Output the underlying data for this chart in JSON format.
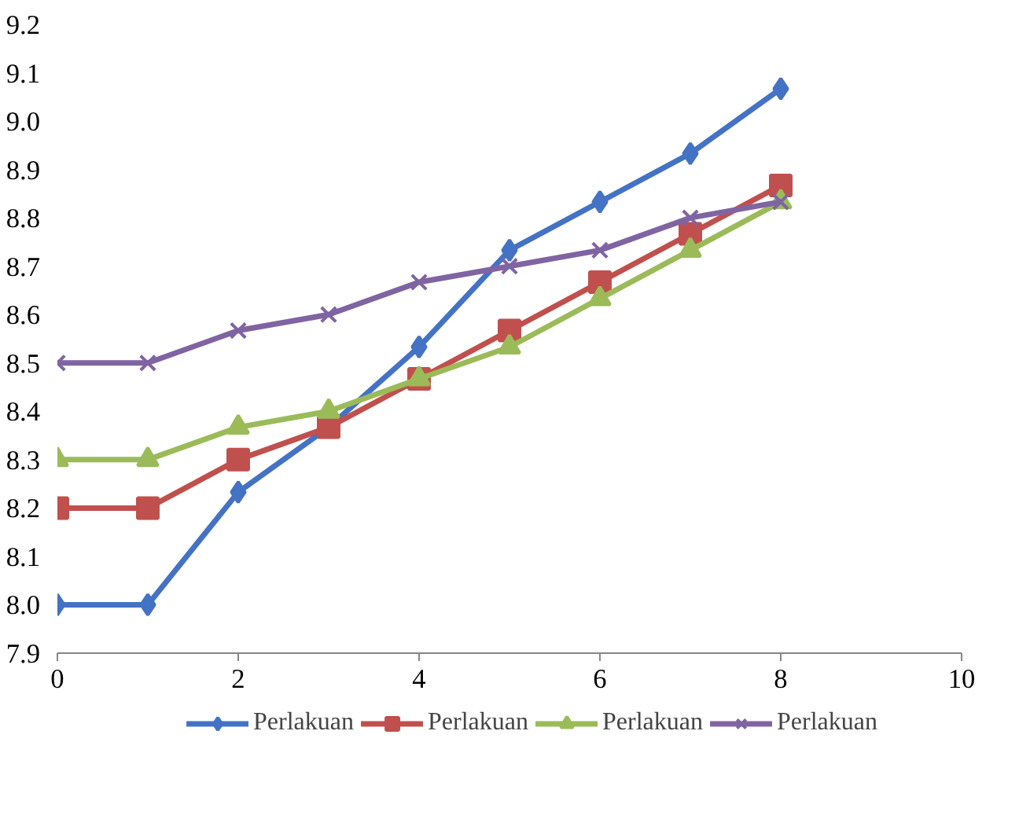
{
  "chart_data": {
    "type": "line",
    "x": [
      0,
      1,
      2,
      3,
      4,
      5,
      6,
      7,
      8
    ],
    "xlim": [
      0,
      10
    ],
    "xticks": [
      0,
      2,
      4,
      6,
      8,
      10
    ],
    "ylim": [
      7.9,
      9.2
    ],
    "yticks": [
      7.9,
      {
        "value": 8,
        "label": "8.0"
      },
      8.1,
      8.2,
      8.3,
      8.4,
      8.5,
      8.6,
      8.7,
      8.8,
      8.9,
      {
        "value": 9,
        "label": "9.0"
      },
      9.1,
      9.2
    ],
    "grid": false,
    "legend": "bottom",
    "line_style": "solid",
    "series": [
      {
        "name": "Perlakuan",
        "color": "#4472c4",
        "marker": "diamond",
        "values": [
          8.0,
          8.0,
          8.233,
          8.367,
          8.533,
          8.733,
          8.833,
          8.933,
          9.067
        ]
      },
      {
        "name": "Perlakuan",
        "color": "#c0504d",
        "marker": "square",
        "values": [
          8.2,
          8.2,
          8.3,
          8.367,
          8.467,
          8.567,
          8.667,
          8.767,
          8.867
        ]
      },
      {
        "name": "Perlakuan",
        "color": "#9bbb59",
        "marker": "triangle",
        "values": [
          8.3,
          8.3,
          8.367,
          8.4,
          8.467,
          8.533,
          8.633,
          8.733,
          8.833
        ]
      },
      {
        "name": "Perlakuan",
        "color": "#8064a2",
        "marker": "cross",
        "values": [
          8.5,
          8.5,
          8.567,
          8.6,
          8.667,
          8.7,
          8.733,
          8.8,
          8.833
        ]
      }
    ]
  }
}
